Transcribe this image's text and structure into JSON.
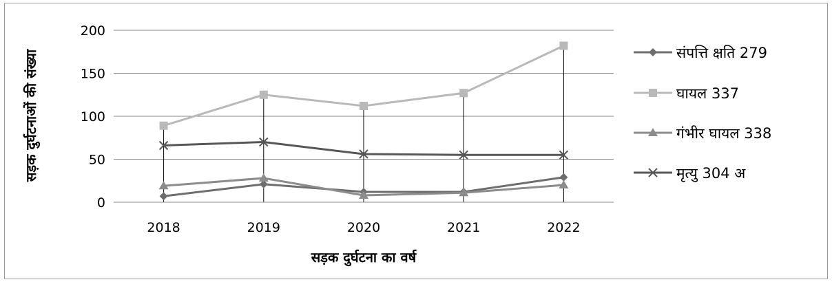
{
  "chart_data": {
    "type": "line",
    "categories": [
      "2018",
      "2019",
      "2020",
      "2021",
      "2022"
    ],
    "ylim": [
      0,
      200
    ],
    "yticks": [
      0,
      50,
      100,
      150,
      200
    ],
    "xlabel": "सड़क दुर्घटना का वर्ष",
    "ylabel": "सड़क दुर्घटनाओं की संख्या",
    "grid": true,
    "drop_lines": true,
    "legend_position": "right",
    "series": [
      {
        "name": "संपत्ति क्षति 279",
        "values": [
          7,
          21,
          12,
          12,
          29
        ],
        "color": "#6e6e6e",
        "marker": "diamond"
      },
      {
        "name": "घायल 337",
        "values": [
          89,
          125,
          112,
          127,
          182
        ],
        "color": "#b9b9b9",
        "marker": "square"
      },
      {
        "name": "गंभीर घायल 338",
        "values": [
          19,
          28,
          8,
          11,
          20
        ],
        "color": "#8c8c8c",
        "marker": "triangle"
      },
      {
        "name": "मृत्यु 304 अ",
        "values": [
          66,
          70,
          56,
          55,
          55
        ],
        "color": "#575757",
        "marker": "x"
      }
    ]
  }
}
